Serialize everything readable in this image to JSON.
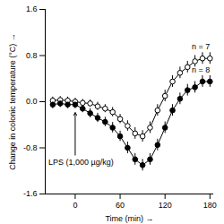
{
  "chart_data": {
    "type": "line",
    "x_label": "Time (min)",
    "y_label": "Change in colonic temperature (°C)",
    "x": [
      -30,
      -20,
      -10,
      0,
      10,
      20,
      30,
      40,
      50,
      60,
      70,
      80,
      90,
      100,
      110,
      120,
      130,
      140,
      150,
      160,
      170,
      180
    ],
    "series": [
      {
        "name": "n = 7",
        "color": "#000000",
        "marker": "open-circle",
        "values": [
          0.02,
          0.03,
          0.02,
          0.0,
          -0.02,
          -0.03,
          -0.08,
          -0.12,
          -0.18,
          -0.3,
          -0.42,
          -0.55,
          -0.6,
          -0.45,
          -0.15,
          0.1,
          0.35,
          0.5,
          0.6,
          0.7,
          0.75,
          0.75
        ],
        "errors": [
          0.06,
          0.06,
          0.06,
          0.06,
          0.06,
          0.06,
          0.07,
          0.07,
          0.08,
          0.08,
          0.09,
          0.1,
          0.1,
          0.1,
          0.1,
          0.1,
          0.1,
          0.1,
          0.1,
          0.1,
          0.1,
          0.1
        ]
      },
      {
        "name": "n = 8",
        "color": "#000000",
        "marker": "circle",
        "values": [
          -0.05,
          -0.03,
          -0.05,
          -0.05,
          -0.12,
          -0.2,
          -0.28,
          -0.35,
          -0.45,
          -0.6,
          -0.8,
          -1.0,
          -1.1,
          -1.0,
          -0.75,
          -0.45,
          -0.15,
          0.05,
          0.2,
          0.25,
          0.35,
          0.35
        ],
        "errors": [
          0.07,
          0.07,
          0.07,
          0.07,
          0.07,
          0.08,
          0.08,
          0.08,
          0.09,
          0.09,
          0.1,
          0.1,
          0.1,
          0.1,
          0.1,
          0.1,
          0.1,
          0.1,
          0.1,
          0.1,
          0.1,
          0.1
        ]
      }
    ],
    "annotations": [
      {
        "text": "LPS (1,000 µg/kg)",
        "x": 0,
        "y": -1.05
      }
    ],
    "xlim": [
      -40,
      185
    ],
    "xticks": [
      0,
      60,
      120,
      180
    ],
    "ylim": [
      -1.6,
      1.6
    ],
    "yticks": [
      -1.6,
      -0.8,
      {
        "value": 0,
        "label": "0.0"
      },
      0.8,
      1.6
    ],
    "grid": false
  }
}
